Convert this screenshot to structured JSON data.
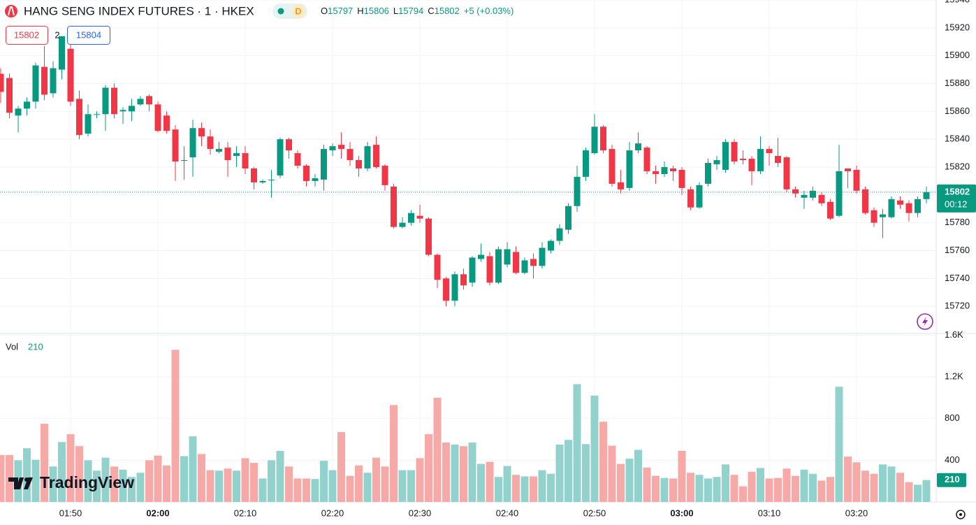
{
  "chart_data": {
    "type": "candlestick",
    "title": "HANG SENG INDEX FUTURES · 1 · HKEX",
    "interval_badge": "D",
    "ohlc_labels": [
      "O",
      "H",
      "L",
      "C"
    ],
    "change": "+5 (+0.03%)",
    "order_badges": {
      "sell": "15802",
      "qty": "2",
      "buy": "15804"
    },
    "countdown": "00:12",
    "volume_label": "Vol",
    "watermark": "TradingView",
    "colors": {
      "up": "#089981",
      "down": "#f23645",
      "volume_up": "#92d2cc",
      "volume_down": "#f7a9a7"
    },
    "grid": true,
    "x": [
      "01:42",
      "01:43",
      "01:44",
      "01:45",
      "01:46",
      "01:47",
      "01:48",
      "01:49",
      "01:50",
      "01:51",
      "01:52",
      "01:53",
      "01:54",
      "01:55",
      "01:56",
      "01:57",
      "01:58",
      "01:59",
      "02:00",
      "02:01",
      "02:02",
      "02:03",
      "02:04",
      "02:05",
      "02:06",
      "02:07",
      "02:08",
      "02:09",
      "02:10",
      "02:11",
      "02:12",
      "02:13",
      "02:14",
      "02:15",
      "02:16",
      "02:17",
      "02:18",
      "02:19",
      "02:20",
      "02:21",
      "02:22",
      "02:23",
      "02:24",
      "02:25",
      "02:26",
      "02:27",
      "02:28",
      "02:29",
      "02:30",
      "02:31",
      "02:32",
      "02:33",
      "02:34",
      "02:35",
      "02:36",
      "02:37",
      "02:38",
      "02:39",
      "02:40",
      "02:41",
      "02:42",
      "02:43",
      "02:44",
      "02:45",
      "02:46",
      "02:47",
      "02:48",
      "02:49",
      "02:50",
      "02:51",
      "02:52",
      "02:53",
      "02:54",
      "02:55",
      "02:56",
      "02:57",
      "02:58",
      "02:59",
      "03:00",
      "03:01",
      "03:02",
      "03:03",
      "03:04",
      "03:05",
      "03:06",
      "03:07",
      "03:08",
      "03:09",
      "03:10",
      "03:11",
      "03:12",
      "03:13",
      "03:14",
      "03:15",
      "03:16",
      "03:17",
      "03:18",
      "03:19",
      "03:20",
      "03:21",
      "03:22",
      "03:23",
      "03:24",
      "03:25",
      "03:26",
      "03:27",
      "03:28"
    ],
    "open": [
      15887,
      15884,
      15857,
      15862,
      15867,
      15892,
      15873,
      15890,
      15905,
      15869,
      15844,
      15858,
      15858,
      15877,
      15860,
      15860,
      15865,
      15871,
      15865,
      15857,
      15847,
      15825,
      15827,
      15848,
      15842,
      15831,
      15834,
      15828,
      15830,
      15819,
      15809,
      15811,
      15814,
      15840,
      15830,
      15821,
      15810,
      15811,
      15832,
      15836,
      15833,
      15825,
      15819,
      15836,
      15821,
      15806,
      15777,
      15780,
      15785,
      15783,
      15757,
      15740,
      15724,
      15743,
      15737,
      15754,
      15756,
      15737,
      15750,
      15759,
      15744,
      15754,
      15749,
      15760,
      15767,
      15775,
      15792,
      15813,
      15830,
      15849,
      15833,
      15809,
      15805,
      15832,
      15834,
      15817,
      15815,
      15819,
      15818,
      15804,
      15791,
      15808,
      15822,
      15818,
      15838,
      15826,
      15826,
      15817,
      15833,
      15828,
      15827,
      15804,
      15798,
      15798,
      15800,
      15795,
      15785,
      15819,
      15818,
      15804,
      15789,
      15784,
      15784,
      15796,
      15794,
      15787,
      15797
    ],
    "high": [
      15891,
      15887,
      15864,
      15870,
      15895,
      15907,
      15896,
      15914,
      15911,
      15875,
      15865,
      15860,
      15879,
      15880,
      15863,
      15869,
      15871,
      15872,
      15867,
      15860,
      15850,
      15835,
      15854,
      15852,
      15847,
      15838,
      15838,
      15835,
      15835,
      15820,
      15811,
      15818,
      15841,
      15841,
      15832,
      15822,
      15815,
      15836,
      15837,
      15845,
      15838,
      15828,
      15838,
      15842,
      15822,
      15808,
      15784,
      15789,
      15793,
      15784,
      15758,
      15741,
      15745,
      15747,
      15756,
      15765,
      15759,
      15763,
      15766,
      15763,
      15755,
      15758,
      15766,
      15768,
      15779,
      15794,
      15821,
      15834,
      15858,
      15850,
      15836,
      15818,
      15838,
      15845,
      15835,
      15821,
      15824,
      15821,
      15820,
      15806,
      15809,
      15826,
      15828,
      15840,
      15840,
      15832,
      15828,
      15842,
      15835,
      15841,
      15828,
      15806,
      15803,
      15806,
      15802,
      15797,
      15836,
      15819,
      15821,
      15806,
      15791,
      15790,
      15799,
      15799,
      15796,
      15799,
      15806
    ],
    "low": [
      15866,
      15855,
      15845,
      15857,
      15862,
      15868,
      15870,
      15883,
      15864,
      15840,
      15842,
      15855,
      15846,
      15855,
      15851,
      15853,
      15864,
      15860,
      15845,
      15844,
      15810,
      15811,
      15813,
      15835,
      15829,
      15830,
      15813,
      15820,
      15815,
      15804,
      15808,
      15798,
      15812,
      15826,
      15819,
      15806,
      15806,
      15803,
      15828,
      15826,
      15821,
      15813,
      15817,
      15819,
      15803,
      15776,
      15776,
      15778,
      15780,
      15756,
      15733,
      15720,
      15720,
      15732,
      15734,
      15752,
      15735,
      15736,
      15748,
      15743,
      15743,
      15740,
      15747,
      15758,
      15764,
      15772,
      15788,
      15810,
      15829,
      15830,
      15806,
      15801,
      15803,
      15830,
      15815,
      15808,
      15813,
      15810,
      15800,
      15789,
      15790,
      15806,
      15818,
      15816,
      15822,
      15822,
      15807,
      15815,
      15821,
      15820,
      15802,
      15798,
      15790,
      15796,
      15792,
      15782,
      15784,
      15805,
      15801,
      15786,
      15777,
      15769,
      15783,
      15790,
      15781,
      15784,
      15794
    ],
    "close": [
      15874,
      15859,
      15862,
      15867,
      15893,
      15872,
      15891,
      15914,
      15867,
      15843,
      15858,
      15858,
      15877,
      15858,
      15861,
      15864,
      15869,
      15865,
      15846,
      15846,
      15824,
      15825,
      15848,
      15842,
      15833,
      15833,
      15825,
      15830,
      15819,
      15809,
      15810,
      15811,
      15840,
      15832,
      15821,
      15810,
      15812,
      15833,
      15835,
      15833,
      15825,
      15819,
      15835,
      15820,
      15807,
      15777,
      15780,
      15787,
      15783,
      15757,
      15739,
      15724,
      15743,
      15735,
      15755,
      15757,
      15737,
      15761,
      15761,
      15744,
      15753,
      15749,
      15762,
      15767,
      15776,
      15792,
      15813,
      15832,
      15849,
      15832,
      15808,
      15804,
      15832,
      15837,
      15817,
      15815,
      15820,
      15817,
      15805,
      15791,
      15807,
      15823,
      15825,
      15838,
      15824,
      15825,
      15817,
      15833,
      15830,
      15823,
      15804,
      15801,
      15800,
      15803,
      15794,
      15783,
      15817,
      15817,
      15803,
      15787,
      15780,
      15786,
      15797,
      15793,
      15787,
      15797,
      15802
    ],
    "volume": [
      450,
      450,
      400,
      515,
      405,
      750,
      340,
      575,
      650,
      535,
      400,
      300,
      425,
      340,
      310,
      240,
      280,
      400,
      445,
      350,
      1460,
      440,
      630,
      460,
      305,
      300,
      320,
      300,
      420,
      375,
      225,
      400,
      490,
      340,
      225,
      225,
      220,
      395,
      305,
      670,
      250,
      350,
      280,
      425,
      340,
      930,
      305,
      305,
      420,
      650,
      1000,
      570,
      550,
      535,
      570,
      365,
      385,
      240,
      345,
      260,
      245,
      245,
      305,
      270,
      550,
      595,
      1130,
      555,
      1020,
      770,
      540,
      365,
      415,
      500,
      330,
      250,
      230,
      225,
      490,
      280,
      260,
      225,
      240,
      360,
      260,
      150,
      290,
      325,
      225,
      230,
      320,
      250,
      310,
      270,
      205,
      240,
      1105,
      435,
      380,
      300,
      270,
      360,
      340,
      280,
      190,
      165,
      210
    ],
    "ylim": [
      15701,
      15940
    ],
    "yticks": [
      15720,
      15740,
      15760,
      15780,
      15800,
      15820,
      15840,
      15860,
      15880,
      15900,
      15920,
      15940
    ],
    "volume_ylim": [
      0,
      1610
    ],
    "volume_yticks": [
      400,
      800,
      {
        "value": 1200,
        "label": "1.2K"
      },
      {
        "value": 1600,
        "label": "1.6K"
      }
    ],
    "xticks": [
      "01:50",
      "02:00",
      "02:10",
      "02:20",
      "02:30",
      "02:40",
      "02:50",
      "03:00",
      "03:10",
      "03:20"
    ]
  }
}
